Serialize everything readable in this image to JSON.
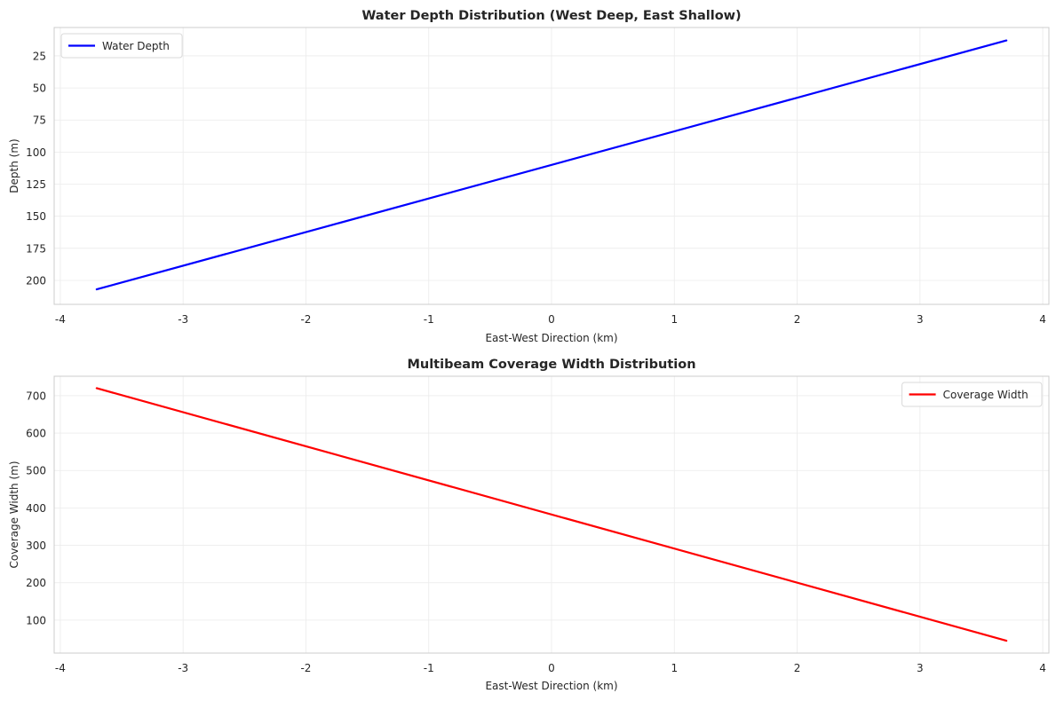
{
  "chart_data": [
    {
      "type": "line",
      "title": "Water Depth Distribution (West Deep, East Shallow)",
      "xlabel": "East-West Direction (km)",
      "ylabel": "Depth (m)",
      "xlim": [
        -4.05,
        4.05
      ],
      "ylim": [
        218.7,
        2.9
      ],
      "y_inverted": true,
      "xticks": [
        -4,
        -3,
        -2,
        -1,
        0,
        1,
        2,
        3,
        4
      ],
      "yticks": [
        25,
        50,
        75,
        100,
        125,
        150,
        175,
        200
      ],
      "grid": true,
      "legend_position": "upper-left",
      "series": [
        {
          "name": "Water Depth",
          "color": "#0000ff",
          "x": [
            -3.704,
            3.704
          ],
          "y": [
            207.0,
            13.0
          ]
        }
      ]
    },
    {
      "type": "line",
      "title": "Multibeam Coverage Width Distribution",
      "xlabel": "East-West Direction (km)",
      "ylabel": "Coverage Width (m)",
      "xlim": [
        -4.05,
        4.05
      ],
      "ylim": [
        12,
        752
      ],
      "y_inverted": false,
      "xticks": [
        -4,
        -3,
        -2,
        -1,
        0,
        1,
        2,
        3,
        4
      ],
      "yticks": [
        100,
        200,
        300,
        400,
        500,
        600,
        700
      ],
      "grid": true,
      "legend_position": "upper-right",
      "series": [
        {
          "name": "Coverage Width",
          "color": "#ff0000",
          "x": [
            -3.704,
            3.704
          ],
          "y": [
            720,
            45
          ]
        }
      ]
    }
  ]
}
